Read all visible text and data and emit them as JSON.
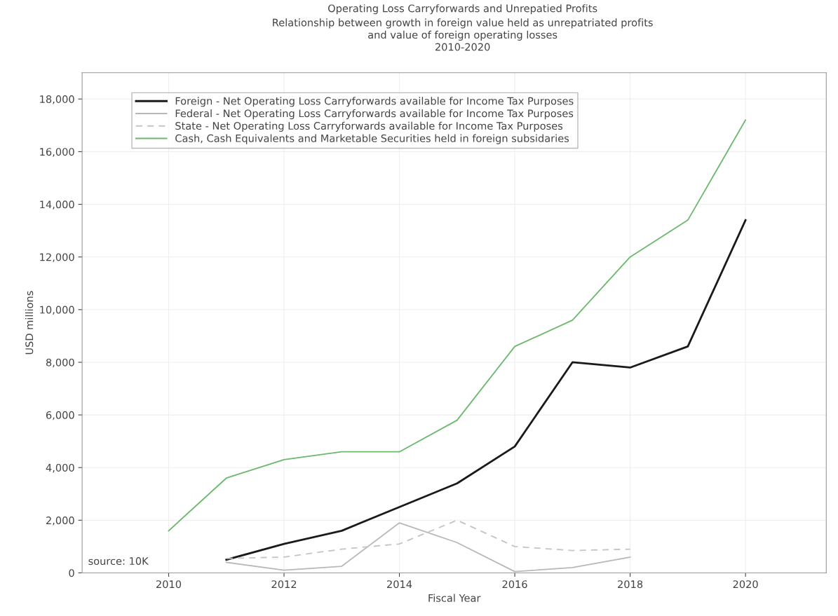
{
  "chart_data": {
    "type": "line",
    "title": "Operating Loss Carryforwards and Unrepatied Profits",
    "subtitle": "Relationship between growth in foreign value held as unrepatriated profits\nand value of foreign operating losses\n2010-2020",
    "xlabel": "Fiscal Year",
    "ylabel": "USD millions",
    "xlim": [
      2008.5,
      2021.4
    ],
    "xticks": [
      2010,
      2012,
      2014,
      2016,
      2018,
      2020
    ],
    "ylim": [
      0,
      19000
    ],
    "yticks": [
      {
        "value": 0,
        "label": "0"
      },
      {
        "value": 2000,
        "label": "2,000"
      },
      {
        "value": 4000,
        "label": "4,000"
      },
      {
        "value": 6000,
        "label": "6,000"
      },
      {
        "value": 8000,
        "label": "8,000"
      },
      {
        "value": 10000,
        "label": "10,000"
      },
      {
        "value": 12000,
        "label": "12,000"
      },
      {
        "value": 14000,
        "label": "14,000"
      },
      {
        "value": 16000,
        "label": "16,000"
      },
      {
        "value": 18000,
        "label": "18,000"
      }
    ],
    "grid": true,
    "legend": "top left",
    "marker": "none",
    "series": [
      {
        "name": "Foreign - Net Operating Loss Carryforwards available for Income Tax Purposes",
        "color": "#1a1a1a",
        "line_style": "solid",
        "x": [
          2011,
          2012,
          2013,
          2014,
          2015,
          2016,
          2017,
          2018,
          2019,
          2020
        ],
        "values": [
          500,
          1100,
          1600,
          2500,
          3400,
          4800,
          8000,
          7800,
          8600,
          13400
        ]
      },
      {
        "name": "Federal - Net Operating Loss Carryforwards available for Income Tax Purposes",
        "color": "#b8b8b8",
        "line_style": "solid",
        "x": [
          2011,
          2012,
          2013,
          2014,
          2015,
          2016,
          2017,
          2018
        ],
        "values": [
          400,
          100,
          250,
          1900,
          1150,
          50,
          200,
          600
        ]
      },
      {
        "name": "State - Net Operating Loss Carryforwards available for Income Tax Purposes",
        "color": "#c4c4c4",
        "line_style": "dashed",
        "x": [
          2011,
          2012,
          2013,
          2014,
          2015,
          2016,
          2017,
          2018
        ],
        "values": [
          550,
          600,
          900,
          1100,
          2000,
          1000,
          850,
          900
        ]
      },
      {
        "name": "Cash, Cash Equivalents and Marketable Securities held in foreign subsidaries",
        "color": "#6cb86c",
        "line_style": "solid",
        "x": [
          2010,
          2011,
          2012,
          2013,
          2014,
          2015,
          2016,
          2017,
          2018,
          2019,
          2020
        ],
        "values": [
          1600,
          3600,
          4300,
          4600,
          4600,
          5800,
          8600,
          9600,
          12000,
          13400,
          17200
        ]
      }
    ],
    "annotations": [
      "source: 10K"
    ]
  }
}
